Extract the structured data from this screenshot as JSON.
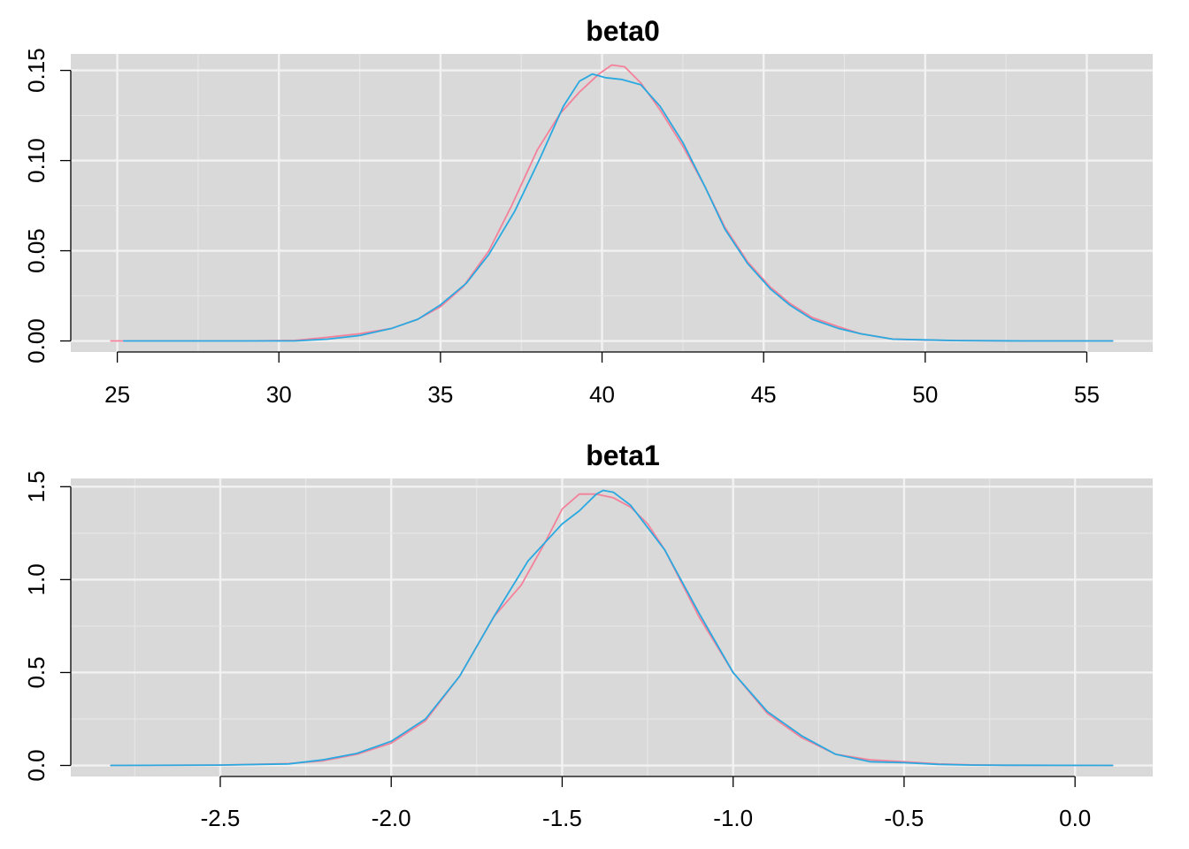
{
  "chart_data": [
    {
      "type": "line",
      "title": "beta0",
      "xlabel": "",
      "ylabel": "",
      "xlim": [
        24.8,
        55.8
      ],
      "ylim": [
        0,
        0.153
      ],
      "x_ticks": [
        25,
        30,
        35,
        40,
        45,
        50,
        55
      ],
      "x_tick_labels": [
        "25",
        "30",
        "35",
        "40",
        "45",
        "50",
        "55"
      ],
      "y_ticks": [
        0,
        0.05,
        0.1,
        0.15
      ],
      "y_tick_labels": [
        "0.00",
        "0.05",
        "0.10",
        "0.15"
      ],
      "grid": true,
      "background": "#d9d9d9",
      "series": [
        {
          "color": "#f4819a",
          "points": [
            [
              24.8,
              0
            ],
            [
              25.5,
              0
            ],
            [
              27,
              0
            ],
            [
              29,
              0
            ],
            [
              30.5,
              0.0003
            ],
            [
              31.5,
              0.002
            ],
            [
              32.5,
              0.004
            ],
            [
              33.5,
              0.007
            ],
            [
              34.3,
              0.012
            ],
            [
              35,
              0.019
            ],
            [
              35.7,
              0.03
            ],
            [
              36.5,
              0.05
            ],
            [
              37.2,
              0.075
            ],
            [
              38,
              0.106
            ],
            [
              38.7,
              0.126
            ],
            [
              39.3,
              0.138
            ],
            [
              39.9,
              0.148
            ],
            [
              40.3,
              0.153
            ],
            [
              40.7,
              0.152
            ],
            [
              41.2,
              0.143
            ],
            [
              41.8,
              0.128
            ],
            [
              42.5,
              0.108
            ],
            [
              43.2,
              0.085
            ],
            [
              43.8,
              0.063
            ],
            [
              44.5,
              0.044
            ],
            [
              45.2,
              0.03
            ],
            [
              45.8,
              0.021
            ],
            [
              46.5,
              0.013
            ],
            [
              47.3,
              0.008
            ],
            [
              48,
              0.004
            ],
            [
              49,
              0.001
            ],
            [
              50,
              0.0005
            ],
            [
              51,
              0.0002
            ],
            [
              53,
              0
            ],
            [
              55.8,
              0
            ]
          ]
        },
        {
          "color": "#2aa9e0",
          "points": [
            [
              25.2,
              0
            ],
            [
              27,
              0
            ],
            [
              29,
              0
            ],
            [
              30.5,
              0
            ],
            [
              31.5,
              0.001
            ],
            [
              32.5,
              0.003
            ],
            [
              33.5,
              0.007
            ],
            [
              34.3,
              0.012
            ],
            [
              35,
              0.02
            ],
            [
              35.8,
              0.032
            ],
            [
              36.5,
              0.048
            ],
            [
              37.3,
              0.072
            ],
            [
              38.1,
              0.102
            ],
            [
              38.8,
              0.13
            ],
            [
              39.3,
              0.144
            ],
            [
              39.7,
              0.148
            ],
            [
              40.1,
              0.146
            ],
            [
              40.6,
              0.145
            ],
            [
              41.2,
              0.142
            ],
            [
              41.8,
              0.13
            ],
            [
              42.5,
              0.11
            ],
            [
              43.2,
              0.085
            ],
            [
              43.8,
              0.062
            ],
            [
              44.5,
              0.043
            ],
            [
              45.2,
              0.029
            ],
            [
              45.8,
              0.02
            ],
            [
              46.5,
              0.012
            ],
            [
              47.3,
              0.007
            ],
            [
              48,
              0.004
            ],
            [
              49,
              0.001
            ],
            [
              50,
              0.0006
            ],
            [
              51,
              0.0002
            ],
            [
              53,
              0
            ],
            [
              55.8,
              0
            ]
          ]
        }
      ]
    },
    {
      "type": "line",
      "title": "beta1",
      "xlabel": "",
      "ylabel": "",
      "xlim": [
        -2.82,
        0.11
      ],
      "ylim": [
        0,
        1.485
      ],
      "x_ticks": [
        -2.5,
        -2.0,
        -1.5,
        -1.0,
        -0.5,
        0.0
      ],
      "x_tick_labels": [
        "-2.5",
        "-2.0",
        "-1.5",
        "-1.0",
        "-0.5",
        "0.0"
      ],
      "y_ticks": [
        0,
        0.5,
        1.0,
        1.5
      ],
      "y_tick_labels": [
        "0.0",
        "0.5",
        "1.0",
        "1.5"
      ],
      "grid": true,
      "background": "#d9d9d9",
      "series": [
        {
          "color": "#f4819a",
          "points": [
            [
              -2.82,
              0
            ],
            [
              -2.5,
              0.002
            ],
            [
              -2.3,
              0.01
            ],
            [
              -2.2,
              0.025
            ],
            [
              -2.1,
              0.06
            ],
            [
              -2.0,
              0.12
            ],
            [
              -1.9,
              0.24
            ],
            [
              -1.8,
              0.48
            ],
            [
              -1.7,
              0.8
            ],
            [
              -1.62,
              0.97
            ],
            [
              -1.55,
              1.2
            ],
            [
              -1.5,
              1.38
            ],
            [
              -1.45,
              1.46
            ],
            [
              -1.4,
              1.46
            ],
            [
              -1.35,
              1.44
            ],
            [
              -1.3,
              1.39
            ],
            [
              -1.25,
              1.3
            ],
            [
              -1.2,
              1.16
            ],
            [
              -1.1,
              0.8
            ],
            [
              -1.0,
              0.5
            ],
            [
              -0.9,
              0.28
            ],
            [
              -0.8,
              0.15
            ],
            [
              -0.7,
              0.06
            ],
            [
              -0.6,
              0.03
            ],
            [
              -0.5,
              0.02
            ],
            [
              -0.4,
              0.008
            ],
            [
              -0.3,
              0.003
            ],
            [
              -0.2,
              0.001
            ],
            [
              0.11,
              0
            ]
          ]
        },
        {
          "color": "#2aa9e0",
          "points": [
            [
              -2.82,
              0
            ],
            [
              -2.5,
              0.002
            ],
            [
              -2.3,
              0.008
            ],
            [
              -2.2,
              0.03
            ],
            [
              -2.1,
              0.065
            ],
            [
              -2.0,
              0.13
            ],
            [
              -1.9,
              0.25
            ],
            [
              -1.8,
              0.48
            ],
            [
              -1.7,
              0.8
            ],
            [
              -1.6,
              1.1
            ],
            [
              -1.5,
              1.3
            ],
            [
              -1.45,
              1.37
            ],
            [
              -1.4,
              1.46
            ],
            [
              -1.38,
              1.48
            ],
            [
              -1.35,
              1.47
            ],
            [
              -1.3,
              1.4
            ],
            [
              -1.2,
              1.16
            ],
            [
              -1.1,
              0.82
            ],
            [
              -1.0,
              0.5
            ],
            [
              -0.9,
              0.29
            ],
            [
              -0.8,
              0.16
            ],
            [
              -0.7,
              0.06
            ],
            [
              -0.6,
              0.02
            ],
            [
              -0.5,
              0.015
            ],
            [
              -0.4,
              0.006
            ],
            [
              -0.3,
              0.002
            ],
            [
              -0.2,
              0.001
            ],
            [
              0.11,
              0
            ]
          ]
        }
      ]
    }
  ]
}
